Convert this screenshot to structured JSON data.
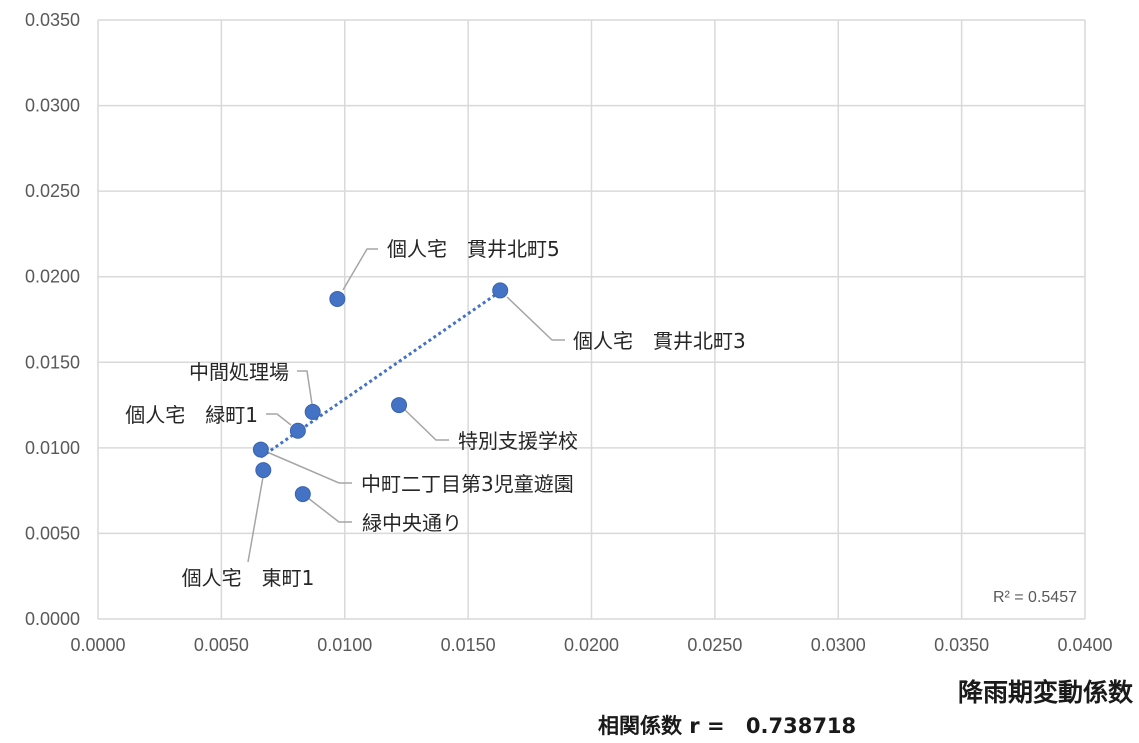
{
  "chart_data": {
    "type": "scatter",
    "xlabel": "降雨期変動係数",
    "xlim": [
      0,
      0.04
    ],
    "ylim": [
      0,
      0.035
    ],
    "grid": true,
    "x_ticks": [
      "0.0000",
      "0.0050",
      "0.0100",
      "0.0150",
      "0.0200",
      "0.0250",
      "0.0300",
      "0.0350",
      "0.0400"
    ],
    "y_ticks": [
      "0.0000",
      "0.0050",
      "0.0100",
      "0.0150",
      "0.0200",
      "0.0250",
      "0.0300",
      "0.0350"
    ],
    "points": [
      {
        "label": "個人宅　貫井北町5",
        "x": 0.0097,
        "y": 0.0187
      },
      {
        "label": "個人宅　貫井北町3",
        "x": 0.0163,
        "y": 0.0192
      },
      {
        "label": "特別支援学校",
        "x": 0.0122,
        "y": 0.0125
      },
      {
        "label": "中間処理場",
        "x": 0.0087,
        "y": 0.0121
      },
      {
        "label": "個人宅　緑町1",
        "x": 0.0081,
        "y": 0.011
      },
      {
        "label": "中町二丁目第3児童遊園",
        "x": 0.0066,
        "y": 0.0099
      },
      {
        "label": "個人宅　東町1",
        "x": 0.0067,
        "y": 0.0087
      },
      {
        "label": "緑中央通り",
        "x": 0.0083,
        "y": 0.0073
      }
    ],
    "trendline": {
      "type": "linear",
      "style": "dotted",
      "r2_label": "R² = 0.5457"
    },
    "correlation": {
      "label": "相関係数 r =",
      "value": "0.738718"
    }
  },
  "colors": {
    "marker": "#4472c4",
    "marker_outline": "#3a64ad",
    "trendline": "#4472c4",
    "grid": "#d9d9d9",
    "leader": "#a6a6a6"
  }
}
